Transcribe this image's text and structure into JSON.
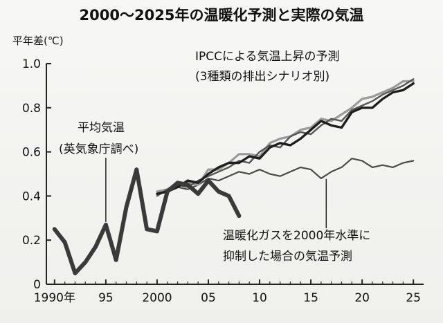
{
  "chart_data": {
    "type": "line",
    "title": "2000～2025年の温暖化予測と実際の気温",
    "ylabel": "平年差(℃)",
    "xlabel": "",
    "xlim": [
      1989.2,
      2026.0
    ],
    "ylim": [
      0,
      1.0
    ],
    "y_ticks": [
      "0",
      "0.2",
      "0.4",
      "0.6",
      "0.8",
      "1.0"
    ],
    "y_tick_values": [
      0,
      0.2,
      0.4,
      0.6,
      0.8,
      1.0
    ],
    "x_ticks": [
      "1990年",
      "95",
      "2000",
      "05",
      "10",
      "15",
      "20",
      "25"
    ],
    "x_tick_values": [
      1990,
      1995,
      2000,
      2005,
      2010,
      2015,
      2020,
      2025
    ],
    "grid": false,
    "annotations": {
      "observed_line1": "平均気温",
      "observed_line2": "(英気象庁調べ)",
      "ipcc_line1": "IPCCによる気温上昇の予測",
      "ipcc_line2": "(3種類の排出シナリオ別)",
      "fixed_line1": "温暖化ガスを2000年水準に",
      "fixed_line2": "抑制した場合の気温予測"
    },
    "colors": {
      "observed": "#3a3a3a",
      "ipcc_dark": "#1e1e1e",
      "ipcc_mid": "#555555",
      "ipcc_light": "#9a9a9a",
      "fixed": "#4a4a4a",
      "axis": "#222222"
    },
    "series": [
      {
        "key": "observed",
        "x": [
          1990,
          1991,
          1992,
          1993,
          1994,
          1995,
          1996,
          1997,
          1998,
          1999,
          2000,
          2001,
          2002,
          2003,
          2004,
          2005,
          2006,
          2007,
          2008
        ],
        "values": [
          0.25,
          0.19,
          0.05,
          0.1,
          0.17,
          0.27,
          0.11,
          0.35,
          0.52,
          0.25,
          0.24,
          0.42,
          0.46,
          0.45,
          0.41,
          0.47,
          0.42,
          0.4,
          0.31
        ]
      },
      {
        "key": "ipcc_dark",
        "x": [
          2000,
          2001,
          2002,
          2003,
          2004,
          2005,
          2006,
          2007,
          2008,
          2009,
          2010,
          2011,
          2012,
          2013,
          2014,
          2015,
          2016,
          2017,
          2018,
          2019,
          2020,
          2021,
          2022,
          2023,
          2024,
          2025
        ],
        "values": [
          0.41,
          0.42,
          0.44,
          0.47,
          0.46,
          0.5,
          0.53,
          0.55,
          0.55,
          0.58,
          0.57,
          0.62,
          0.64,
          0.63,
          0.66,
          0.7,
          0.74,
          0.72,
          0.71,
          0.78,
          0.8,
          0.8,
          0.84,
          0.87,
          0.88,
          0.91
        ]
      },
      {
        "key": "ipcc_mid",
        "x": [
          2000,
          2001,
          2002,
          2003,
          2004,
          2005,
          2006,
          2007,
          2008,
          2009,
          2010,
          2011,
          2012,
          2013,
          2014,
          2015,
          2016,
          2017,
          2018,
          2019,
          2020,
          2021,
          2022,
          2023,
          2024,
          2025
        ],
        "values": [
          0.4,
          0.43,
          0.45,
          0.44,
          0.47,
          0.49,
          0.51,
          0.53,
          0.56,
          0.55,
          0.6,
          0.63,
          0.62,
          0.67,
          0.69,
          0.68,
          0.72,
          0.75,
          0.74,
          0.79,
          0.81,
          0.83,
          0.86,
          0.88,
          0.9,
          0.93
        ]
      },
      {
        "key": "ipcc_light",
        "x": [
          2000,
          2001,
          2002,
          2003,
          2004,
          2005,
          2006,
          2007,
          2008,
          2009,
          2010,
          2011,
          2012,
          2013,
          2014,
          2015,
          2016,
          2017,
          2018,
          2019,
          2020,
          2021,
          2022,
          2023,
          2024,
          2025
        ],
        "values": [
          0.42,
          0.43,
          0.46,
          0.46,
          0.45,
          0.52,
          0.52,
          0.55,
          0.59,
          0.59,
          0.58,
          0.64,
          0.66,
          0.67,
          0.7,
          0.71,
          0.75,
          0.74,
          0.77,
          0.8,
          0.84,
          0.85,
          0.87,
          0.89,
          0.92,
          0.92
        ]
      },
      {
        "key": "fixed",
        "x": [
          2000,
          2001,
          2002,
          2003,
          2004,
          2005,
          2006,
          2007,
          2008,
          2009,
          2010,
          2011,
          2012,
          2013,
          2014,
          2015,
          2016,
          2017,
          2018,
          2019,
          2020,
          2021,
          2022,
          2023,
          2024,
          2025
        ],
        "values": [
          0.41,
          0.43,
          0.44,
          0.43,
          0.45,
          0.48,
          0.47,
          0.49,
          0.51,
          0.5,
          0.52,
          0.5,
          0.49,
          0.51,
          0.53,
          0.52,
          0.48,
          0.51,
          0.53,
          0.57,
          0.56,
          0.53,
          0.54,
          0.53,
          0.55,
          0.56
        ]
      }
    ]
  }
}
